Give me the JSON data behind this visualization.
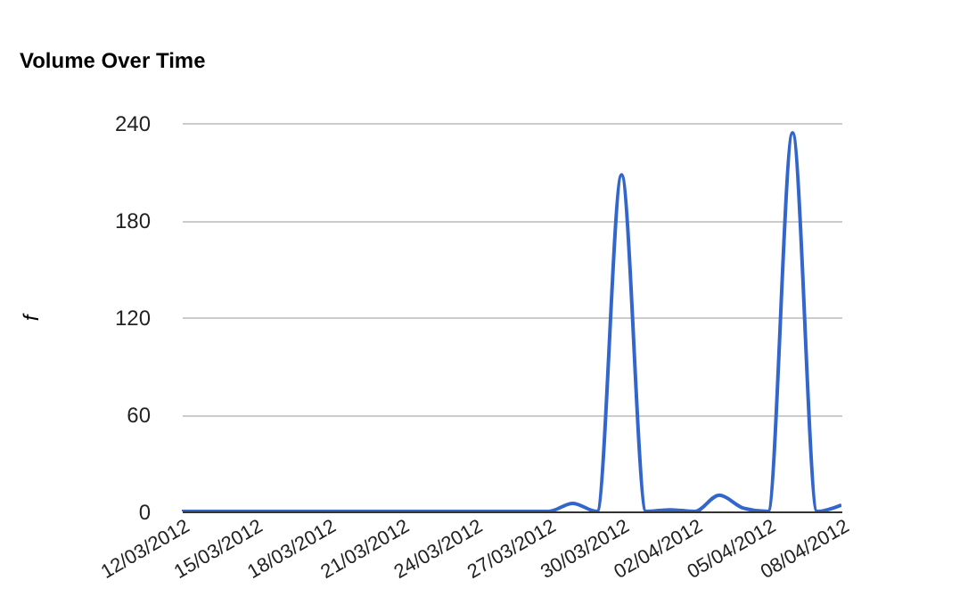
{
  "chart_data": {
    "type": "line",
    "title": "Volume Over Time",
    "ylabel": "f",
    "categories": [
      "12/03/2012",
      null,
      null,
      "15/03/2012",
      null,
      null,
      "18/03/2012",
      null,
      null,
      "21/03/2012",
      null,
      null,
      "24/03/2012",
      null,
      null,
      "27/03/2012",
      null,
      null,
      "30/03/2012",
      null,
      null,
      "02/04/2012",
      null,
      null,
      "05/04/2012",
      null,
      null,
      "08/04/2012"
    ],
    "series": [
      {
        "color": "#3366cc",
        "values": [
          0,
          0,
          0,
          0,
          0,
          0,
          0,
          0,
          0,
          0,
          0,
          0,
          0,
          0,
          0,
          0,
          5,
          0,
          208,
          0,
          1,
          0,
          10,
          2,
          0,
          234,
          0,
          4
        ]
      }
    ],
    "ylim": [
      0,
      240
    ],
    "yticks": [
      0,
      60,
      120,
      180,
      240
    ],
    "grid": "y",
    "marker": "none",
    "line_style": "solid"
  }
}
